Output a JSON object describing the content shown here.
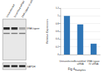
{
  "chart_data": {
    "type": "bar",
    "title": "Fig 4",
    "x_label": "Samples",
    "y_label": "Relative Expression",
    "categories": [
      "Untransfected",
      "Scrambled siRNA",
      "DNA Ligase IV siRNA"
    ],
    "values": [
      1.0,
      0.78,
      0.28
    ],
    "color": "#2e75b6",
    "ylim": [
      0,
      1.2
    ],
    "yticks": [
      0,
      0.2,
      0.4,
      0.6,
      0.8,
      1,
      1.2
    ],
    "grid": true
  },
  "blot": {
    "lanes": [
      "Untransfected",
      "Scrambled siRNA",
      "DNA Ligase IV siRNA"
    ],
    "labels": [
      "DNA Ligase IV",
      "GAPDH"
    ]
  }
}
